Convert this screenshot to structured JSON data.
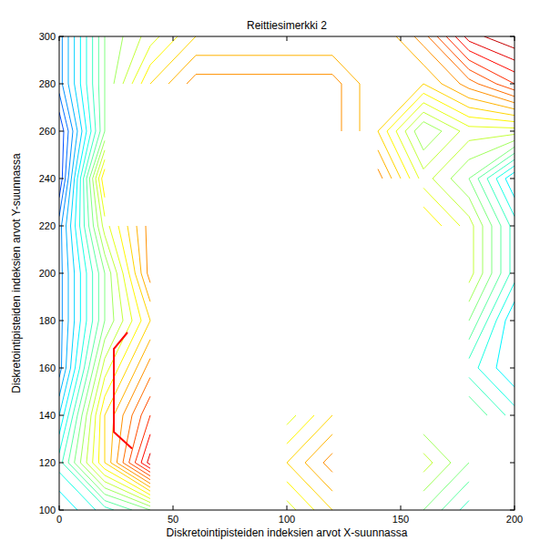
{
  "chart_data": {
    "type": "contour",
    "title": "Reittiesimerkki 2",
    "x_label": "Diskretointipisteiden indeksien arvot X-suunnassa",
    "y_label": "Diskretointipisteiden indeksien arvot Y-suunnassa",
    "xlim": [
      0,
      200
    ],
    "ylim": [
      100,
      300
    ],
    "xticks": [
      0,
      50,
      100,
      150,
      200
    ],
    "yticks": [
      100,
      120,
      140,
      160,
      180,
      200,
      220,
      240,
      260,
      280,
      300
    ],
    "grid": false,
    "x": [
      0,
      20,
      40,
      60,
      80,
      100,
      120,
      140,
      160,
      180,
      200
    ],
    "y": [
      100,
      120,
      140,
      160,
      180,
      200,
      220,
      240,
      260,
      280,
      300
    ],
    "z": [
      [
        20,
        25,
        30,
        null,
        null,
        35,
        40,
        null,
        30,
        25,
        null
      ],
      [
        25,
        40,
        55,
        null,
        null,
        40,
        45,
        null,
        35,
        30,
        null
      ],
      [
        20,
        40,
        50,
        null,
        null,
        35,
        40,
        null,
        30,
        30,
        25
      ],
      [
        15,
        35,
        45,
        null,
        null,
        null,
        null,
        null,
        null,
        25,
        20
      ],
      [
        15,
        30,
        40,
        null,
        null,
        null,
        null,
        null,
        null,
        30,
        20
      ],
      [
        15,
        30,
        45,
        50,
        55,
        null,
        null,
        null,
        null,
        35,
        25
      ],
      [
        15,
        35,
        45,
        null,
        null,
        null,
        null,
        null,
        40,
        35,
        25
      ],
      [
        10,
        40,
        null,
        null,
        null,
        null,
        null,
        45,
        35,
        30,
        20
      ],
      [
        10,
        30,
        null,
        null,
        null,
        null,
        45,
        40,
        30,
        35,
        35
      ],
      [
        15,
        30,
        40,
        45,
        45,
        45,
        45,
        40,
        40,
        45,
        50
      ],
      [
        15,
        30,
        35,
        40,
        40,
        40,
        40,
        40,
        45,
        55,
        58
      ]
    ],
    "zlim": [
      0,
      60
    ],
    "levels": [
      2,
      4,
      6,
      8,
      10,
      12,
      14,
      16,
      18,
      20,
      22,
      24,
      26,
      28,
      30,
      32,
      34,
      36,
      38,
      40,
      42,
      44,
      46,
      48,
      50,
      52,
      54,
      56,
      58
    ],
    "route": {
      "x": [
        32,
        24,
        24,
        30
      ],
      "y": [
        126,
        133,
        168,
        175
      ],
      "color": "#ff0000"
    }
  }
}
